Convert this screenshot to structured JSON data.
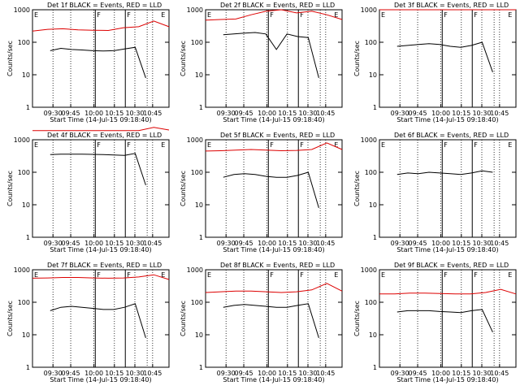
{
  "colors": {
    "events": "#000000",
    "lld": "#dd0000",
    "axis": "#000000"
  },
  "chart_data": [
    {
      "type": "line",
      "title": "Det 1f BLACK = Events, RED = LLD",
      "xlabel": "Start Time (14-Jul-15 09:18:40)",
      "ylabel": "Counts/sec",
      "yscale": "log",
      "ylim": [
        1,
        1000
      ],
      "yticks": [
        "1",
        "10",
        "100",
        "1000"
      ],
      "xticks": [
        "09:30",
        "09:45",
        "10:00",
        "10:15",
        "10:30",
        "10:45"
      ],
      "markers": [
        "E",
        "F",
        "F",
        "E"
      ],
      "series": [
        {
          "name": "Events",
          "values": [
            55,
            65,
            60,
            58,
            55,
            54,
            55,
            62,
            70,
            8
          ]
        },
        {
          "name": "LLD",
          "values": [
            220,
            250,
            260,
            240,
            235,
            230,
            280,
            300,
            450,
            300
          ]
        }
      ]
    },
    {
      "type": "line",
      "title": "Det 2f BLACK = Events, RED = LLD",
      "xlabel": "Start Time (14-Jul-15 09:18:40)",
      "ylabel": "Counts/sec",
      "yscale": "log",
      "ylim": [
        1,
        1000
      ],
      "yticks": [
        "1",
        "10",
        "100",
        "1000"
      ],
      "xticks": [
        "09:30",
        "09:45",
        "10:00",
        "10:15",
        "10:30",
        "10:45"
      ],
      "markers": [
        "E",
        "F",
        "F",
        "E"
      ],
      "series": [
        {
          "name": "Events",
          "values": [
            170,
            180,
            190,
            200,
            180,
            60,
            180,
            150,
            140,
            8
          ]
        },
        {
          "name": "LLD",
          "values": [
            480,
            500,
            520,
            700,
            900,
            1000,
            800,
            900,
            700,
            500
          ]
        }
      ]
    },
    {
      "type": "line",
      "title": "Det 3f BLACK = Events, RED = LLD",
      "xlabel": "Start Time (14-Jul-15 09:18:40)",
      "ylabel": "Counts/sec",
      "yscale": "log",
      "ylim": [
        1,
        1000
      ],
      "yticks": [
        "1",
        "10",
        "100",
        "1000"
      ],
      "xticks": [
        "09:30",
        "09:45",
        "10:00",
        "10:15",
        "10:30",
        "10:45"
      ],
      "markers": [
        "E",
        "F",
        "F",
        "E"
      ],
      "series": [
        {
          "name": "Events",
          "values": [
            75,
            80,
            85,
            90,
            85,
            75,
            70,
            80,
            100,
            12
          ]
        },
        {
          "name": "LLD",
          "values": [
            1000,
            1000,
            1000,
            1000,
            1000,
            1000,
            1000,
            1000,
            1000,
            1000
          ]
        }
      ]
    },
    {
      "type": "line",
      "title": "Det 4f BLACK = Events, RED = LLD",
      "xlabel": "Start Time (14-Jul-15 09:18:40)",
      "ylabel": "Counts/sec",
      "yscale": "log",
      "ylim": [
        1,
        1000
      ],
      "yticks": [
        "1",
        "10",
        "100",
        "1000"
      ],
      "xticks": [
        "09:30",
        "09:45",
        "10:00",
        "10:15",
        "10:30",
        "10:45"
      ],
      "markers": [
        "E",
        "F",
        "F",
        "E"
      ],
      "series": [
        {
          "name": "Events",
          "values": [
            350,
            360,
            360,
            360,
            355,
            350,
            340,
            330,
            380,
            40
          ]
        },
        {
          "name": "LLD",
          "values": [
            1900,
            1900,
            1900,
            1900,
            1900,
            1900,
            1900,
            1900,
            2400,
            2000
          ]
        }
      ]
    },
    {
      "type": "line",
      "title": "Det 5f BLACK = Events, RED = LLD",
      "xlabel": "Start Time (14-Jul-15 09:18:40)",
      "ylabel": "Counts/sec",
      "yscale": "log",
      "ylim": [
        1,
        1000
      ],
      "yticks": [
        "1",
        "10",
        "100",
        "1000"
      ],
      "xticks": [
        "09:30",
        "09:45",
        "10:00",
        "10:15",
        "10:30",
        "10:45"
      ],
      "markers": [
        "E",
        "F",
        "F",
        "E"
      ],
      "series": [
        {
          "name": "Events",
          "values": [
            70,
            85,
            90,
            85,
            75,
            70,
            70,
            80,
            100,
            8
          ]
        },
        {
          "name": "LLD",
          "values": [
            450,
            460,
            480,
            500,
            480,
            460,
            470,
            500,
            800,
            500
          ]
        }
      ]
    },
    {
      "type": "line",
      "title": "Det 6f BLACK = Events, RED = LLD",
      "xlabel": "Start Time (14-Jul-15 09:18:40)",
      "ylabel": "Counts/sec",
      "yscale": "log",
      "ylim": [
        1,
        1000
      ],
      "yticks": [
        "1",
        "10",
        "100",
        "1000"
      ],
      "xticks": [
        "09:30",
        "09:45",
        "10:00",
        "10:15",
        "10:30",
        "10:45"
      ],
      "markers": [
        "E",
        "F",
        "F",
        "E"
      ],
      "series": [
        {
          "name": "Events",
          "values": [
            85,
            95,
            90,
            100,
            95,
            90,
            85,
            95,
            110,
            100
          ]
        }
      ]
    },
    {
      "type": "line",
      "title": "Det 7f BLACK = Events, RED = LLD",
      "xlabel": "Start Time (14-Jul-15 09:18:40)",
      "ylabel": "Counts/sec",
      "yscale": "log",
      "ylim": [
        1,
        1000
      ],
      "yticks": [
        "1",
        "10",
        "100",
        "1000"
      ],
      "xticks": [
        "09:30",
        "09:45",
        "10:00",
        "10:15",
        "10:30",
        "10:45"
      ],
      "markers": [
        "E",
        "F",
        "F",
        "E"
      ],
      "series": [
        {
          "name": "Events",
          "values": [
            55,
            70,
            75,
            70,
            65,
            60,
            60,
            70,
            90,
            8
          ]
        },
        {
          "name": "LLD",
          "values": [
            550,
            560,
            580,
            580,
            560,
            550,
            560,
            600,
            700,
            500
          ]
        }
      ]
    },
    {
      "type": "line",
      "title": "Det 8f BLACK = Events, RED = LLD",
      "xlabel": "Start Time (14-Jul-15 09:18:40)",
      "ylabel": "Counts/sec",
      "yscale": "log",
      "ylim": [
        1,
        1000
      ],
      "yticks": [
        "1",
        "10",
        "100",
        "1000"
      ],
      "xticks": [
        "09:30",
        "09:45",
        "10:00",
        "10:15",
        "10:30",
        "10:45"
      ],
      "markers": [
        "E",
        "F",
        "F",
        "E"
      ],
      "series": [
        {
          "name": "Events",
          "values": [
            70,
            80,
            85,
            80,
            75,
            70,
            70,
            80,
            90,
            8
          ]
        },
        {
          "name": "LLD",
          "values": [
            200,
            210,
            220,
            220,
            210,
            200,
            210,
            240,
            380,
            220
          ]
        }
      ]
    },
    {
      "type": "line",
      "title": "Det 9f BLACK = Events, RED = LLD",
      "xlabel": "Start Time (14-Jul-15 09:18:40)",
      "ylabel": "Counts/sec",
      "yscale": "log",
      "ylim": [
        1,
        1000
      ],
      "yticks": [
        "1",
        "10",
        "100",
        "1000"
      ],
      "xticks": [
        "09:30",
        "09:45",
        "10:00",
        "10:15",
        "10:30",
        "10:45"
      ],
      "markers": [
        "E",
        "F",
        "F",
        "E"
      ],
      "series": [
        {
          "name": "Events",
          "values": [
            50,
            55,
            55,
            55,
            52,
            50,
            48,
            55,
            60,
            12
          ]
        },
        {
          "name": "LLD",
          "values": [
            180,
            180,
            190,
            190,
            185,
            180,
            180,
            200,
            250,
            180
          ]
        }
      ]
    }
  ]
}
